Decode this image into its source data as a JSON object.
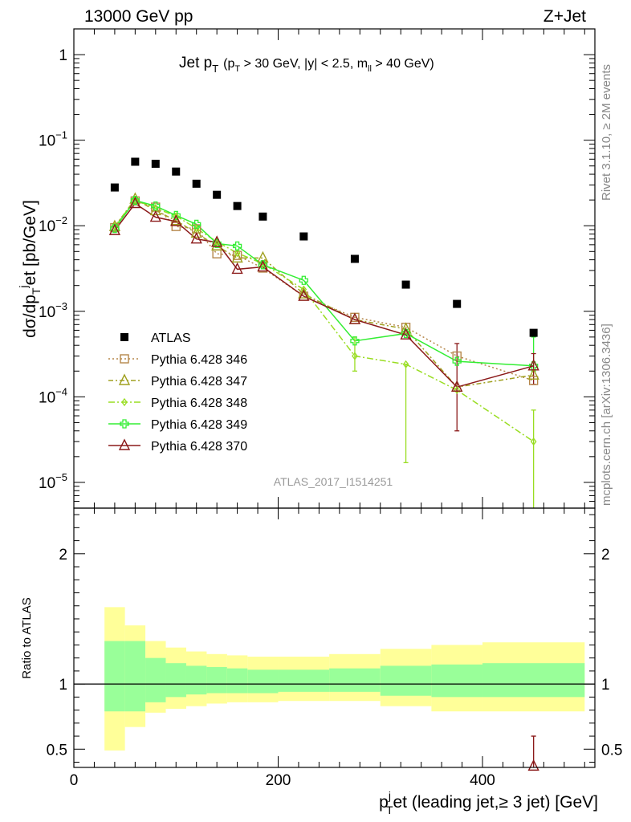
{
  "header": {
    "left": "13000 GeV pp",
    "right": "Z+Jet"
  },
  "side_labels": {
    "rivet": "Rivet 3.1.10, ≥ 2M events",
    "mcplots": "mcplots.cern.ch [arXiv:1306.3436]"
  },
  "watermark": "ATLAS_2017_I1514251",
  "plot_title": {
    "main": "Jet p",
    "main_sub": "T",
    "cuts_a": "(p",
    "cuts_a_sub": "T",
    "cuts_b": " > 30 GeV, |y| < 2.5, m",
    "cuts_b_sub": "ll",
    "cuts_c": " > 40 GeV)"
  },
  "axes": {
    "y_main": "dσ/dp",
    "y_main_sub": "T",
    "y_main_sup": "j",
    "y_main_rest": "et [pb/GeV]",
    "y_ratio": "Ratio to ATLAS",
    "x_main": "p",
    "x_main_sub": "T",
    "x_main_sup": "j",
    "x_main_rest": "et (leading jet,≥ 3 jet) [GeV]"
  },
  "main_y_ticks": [
    {
      "base": "1",
      "exp": ""
    },
    {
      "base": "10",
      "exp": "−1"
    },
    {
      "base": "10",
      "exp": "−2"
    },
    {
      "base": "10",
      "exp": "−3"
    },
    {
      "base": "10",
      "exp": "−4"
    },
    {
      "base": "10",
      "exp": "−5"
    }
  ],
  "ratio_y_ticks": [
    "2",
    "1",
    "0.5"
  ],
  "x_ticks": [
    "0",
    "200",
    "400"
  ],
  "legend": [
    {
      "label": "ATLAS"
    },
    {
      "label": "Pythia 6.428 346"
    },
    {
      "label": "Pythia 6.428 347"
    },
    {
      "label": "Pythia 6.428 348"
    },
    {
      "label": "Pythia 6.428 349"
    },
    {
      "label": "Pythia 6.428 370"
    }
  ],
  "chart_data": {
    "type": "scatter",
    "xlim": [
      0,
      510
    ],
    "ylim": [
      5e-06,
      2
    ],
    "ylog": true,
    "ratio_ylim": [
      0.36,
      2.35
    ],
    "bins": [
      [
        30,
        50
      ],
      [
        50,
        70
      ],
      [
        70,
        90
      ],
      [
        90,
        110
      ],
      [
        110,
        130
      ],
      [
        130,
        150
      ],
      [
        150,
        170
      ],
      [
        170,
        200
      ],
      [
        200,
        250
      ],
      [
        250,
        300
      ],
      [
        300,
        350
      ],
      [
        350,
        400
      ],
      [
        400,
        500
      ]
    ],
    "x": [
      40,
      60,
      80,
      100,
      120,
      140,
      160,
      185,
      225,
      275,
      325,
      375,
      450
    ],
    "series": [
      {
        "name": "ATLAS",
        "color": "#000000",
        "marker": "square-filled",
        "values": [
          0.028,
          0.056,
          0.053,
          0.043,
          0.031,
          0.023,
          0.017,
          0.0128,
          0.0075,
          0.0041,
          0.00205,
          0.00122,
          0.00056
        ]
      },
      {
        "name": "Pythia 6.428 346",
        "color": "#b5874a",
        "marker": "square-open",
        "dash": "2,3",
        "values": [
          0.0095,
          0.0195,
          0.0165,
          0.0098,
          0.0092,
          0.0047,
          0.0045,
          0.0032,
          0.0015,
          0.00085,
          0.00065,
          0.0003,
          0.000155
        ]
      },
      {
        "name": "Pythia 6.428 347",
        "color": "#a0a020",
        "marker": "triangle-open",
        "dash": "6,3,2,3",
        "values": [
          0.0098,
          0.0205,
          0.015,
          0.0115,
          0.0082,
          0.0058,
          0.0042,
          0.0042,
          0.0016,
          0.0008,
          0.00062,
          0.00013,
          0.00018
        ]
      },
      {
        "name": "Pythia 6.428 348",
        "color": "#99dd22",
        "marker": "diamond-open",
        "dash": "8,3,2,3",
        "values": [
          0.0098,
          0.02,
          0.016,
          0.013,
          0.0093,
          0.0065,
          0.0048,
          0.0036,
          0.0018,
          0.0003,
          0.00024,
          0.00012,
          3e-05
        ]
      },
      {
        "name": "Pythia 6.428 349",
        "color": "#33ee33",
        "marker": "cross-open",
        "dash": "",
        "values": [
          0.0093,
          0.0198,
          0.017,
          0.0132,
          0.0104,
          0.0062,
          0.0058,
          0.0035,
          0.0023,
          0.00045,
          0.00055,
          0.00026,
          0.00023
        ]
      },
      {
        "name": "Pythia 6.428 370",
        "color": "#8b1a1a",
        "marker": "triangle-open",
        "dash": "",
        "values": [
          0.0088,
          0.0182,
          0.0126,
          0.0112,
          0.007,
          0.0064,
          0.0031,
          0.0033,
          0.0015,
          0.0008,
          0.00053,
          0.00013,
          0.00023
        ]
      }
    ],
    "error_bars": {
      "348": [
        [
          0.0002,
          0.0005
        ],
        [
          1.7e-05,
          0.00024
        ],
        [
          5e-06,
          7e-05
        ]
      ],
      "370": [
        [
          4e-05,
          0.00042
        ],
        [
          0.00014,
          0.00032
        ]
      ],
      "349": [
        [
          0.0002,
          0.0005
        ]
      ]
    },
    "ratio_band_inner": [
      [
        0.79,
        1.33
      ],
      [
        0.79,
        1.33
      ],
      [
        0.86,
        1.2
      ],
      [
        0.9,
        1.16
      ],
      [
        0.92,
        1.14
      ],
      [
        0.93,
        1.13
      ],
      [
        0.93,
        1.12
      ],
      [
        0.93,
        1.11
      ],
      [
        0.94,
        1.11
      ],
      [
        0.94,
        1.12
      ],
      [
        0.91,
        1.14
      ],
      [
        0.9,
        1.15
      ],
      [
        0.9,
        1.16
      ]
    ],
    "ratio_band_outer": [
      [
        0.49,
        1.59
      ],
      [
        0.67,
        1.45
      ],
      [
        0.78,
        1.33
      ],
      [
        0.81,
        1.28
      ],
      [
        0.83,
        1.25
      ],
      [
        0.85,
        1.23
      ],
      [
        0.86,
        1.22
      ],
      [
        0.86,
        1.21
      ],
      [
        0.87,
        1.21
      ],
      [
        0.87,
        1.23
      ],
      [
        0.83,
        1.27
      ],
      [
        0.79,
        1.3
      ],
      [
        0.79,
        1.32
      ]
    ],
    "ratio_points": {
      "x": 450,
      "value": 0.37,
      "err_low": 0.0,
      "err_high": 0.6
    },
    "colors": {
      "band_inner": "#99ff99",
      "band_outer": "#ffff99"
    }
  }
}
